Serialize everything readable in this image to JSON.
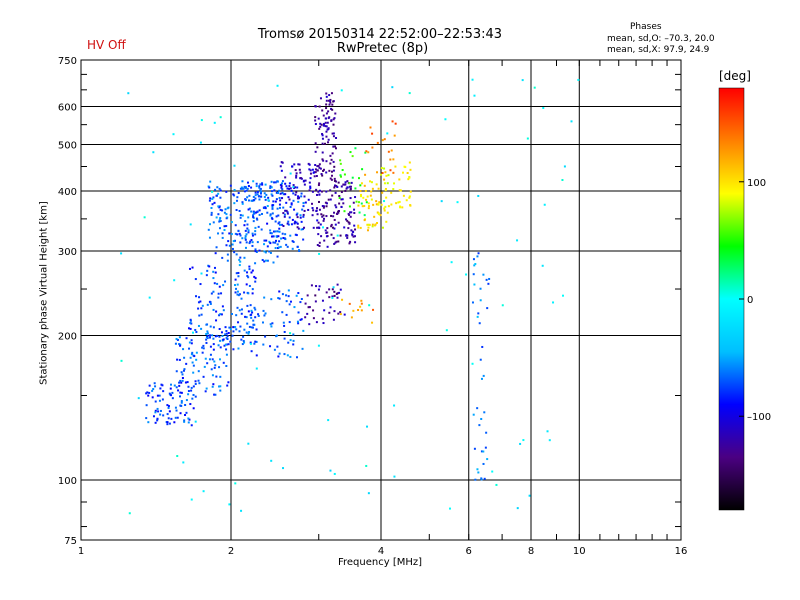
{
  "header": {
    "title": "Tromsø 20150314 22:52:00–22:53:43",
    "subtitle": "RwPretec (8p)",
    "status": "HV Off"
  },
  "phases": {
    "title": "Phases",
    "o_line": "mean, sd,O: –70.3, 20.0",
    "x_line": "mean, sd,X:  97.9, 24.9"
  },
  "colorbar": {
    "unit": "[deg]",
    "ticks": [
      {
        "value": 100,
        "label": "100"
      },
      {
        "value": 0,
        "label": "0"
      },
      {
        "value": -100,
        "label": "–100"
      }
    ],
    "range": [
      -180,
      180
    ],
    "colors": [
      "#000000",
      "#4b0082",
      "#0000ff",
      "#00bfff",
      "#00ffff",
      "#00ff00",
      "#ffff00",
      "#ff8000",
      "#ff0000"
    ]
  },
  "chart_data": {
    "type": "scatter",
    "xlabel": "Frequency [MHz]",
    "ylabel": "Stationary phase Virtual Height [km]",
    "x_scale": "log",
    "y_scale": "log",
    "xlim": [
      1,
      16
    ],
    "ylim": [
      75,
      750
    ],
    "grid": true,
    "x_ticks": [
      {
        "value": 1,
        "label": "1"
      },
      {
        "value": 2,
        "label": "2"
      },
      {
        "value": 4,
        "label": "4"
      },
      {
        "value": 6,
        "label": "6"
      },
      {
        "value": 8,
        "label": "8"
      },
      {
        "value": 10,
        "label": "10"
      },
      {
        "value": 16,
        "label": "16"
      }
    ],
    "y_ticks": [
      {
        "value": 75,
        "label": "75"
      },
      {
        "value": 100,
        "label": "100"
      },
      {
        "value": 200,
        "label": "200"
      },
      {
        "value": 300,
        "label": "300"
      },
      {
        "value": 400,
        "label": "400"
      },
      {
        "value": 500,
        "label": "500"
      },
      {
        "value": 600,
        "label": "600"
      },
      {
        "value": 750,
        "label": "750"
      }
    ],
    "clusters": [
      {
        "f": [
          1.35,
          1.7
        ],
        "h": [
          130,
          160
        ],
        "phase": -75,
        "count": 90
      },
      {
        "f": [
          1.55,
          2.0
        ],
        "h": [
          150,
          210
        ],
        "phase": -70,
        "count": 110
      },
      {
        "f": [
          1.65,
          2.25
        ],
        "h": [
          190,
          280
        ],
        "phase": -72,
        "count": 120
      },
      {
        "f": [
          1.8,
          2.5
        ],
        "h": [
          280,
          420
        ],
        "phase": -68,
        "count": 190
      },
      {
        "f": [
          2.1,
          2.8
        ],
        "h": [
          300,
          420
        ],
        "phase": -74,
        "count": 160
      },
      {
        "f": [
          2.0,
          2.8
        ],
        "h": [
          180,
          250
        ],
        "phase": -70,
        "count": 90
      },
      {
        "f": [
          2.5,
          3.0
        ],
        "h": [
          330,
          460
        ],
        "phase": -112,
        "count": 90
      },
      {
        "f": [
          2.95,
          3.25
        ],
        "h": [
          300,
          640
        ],
        "phase": -125,
        "count": 170
      },
      {
        "f": [
          3.25,
          3.55
        ],
        "h": [
          310,
          420
        ],
        "phase": -125,
        "count": 70
      },
      {
        "f": [
          3.6,
          4.1
        ],
        "h": [
          330,
          420
        ],
        "phase": 100,
        "count": 55
      },
      {
        "f": [
          4.0,
          4.6
        ],
        "h": [
          360,
          460
        ],
        "phase": 95,
        "count": 45
      },
      {
        "f": [
          3.3,
          3.8
        ],
        "h": [
          350,
          500
        ],
        "phase": 45,
        "count": 25
      },
      {
        "f": [
          3.7,
          4.3
        ],
        "h": [
          430,
          560
        ],
        "phase": 140,
        "count": 20
      },
      {
        "f": [
          2.8,
          3.4
        ],
        "h": [
          210,
          260
        ],
        "phase": -125,
        "count": 40
      },
      {
        "f": [
          3.3,
          3.9
        ],
        "h": [
          210,
          240
        ],
        "phase": 130,
        "count": 12
      },
      {
        "f": [
          6.1,
          6.6
        ],
        "h": [
          100,
          300
        ],
        "phase": -60,
        "count": 40
      },
      {
        "f": [
          1.2,
          10.0
        ],
        "h": [
          85,
          700
        ],
        "phase": -10,
        "count": 90
      }
    ]
  }
}
